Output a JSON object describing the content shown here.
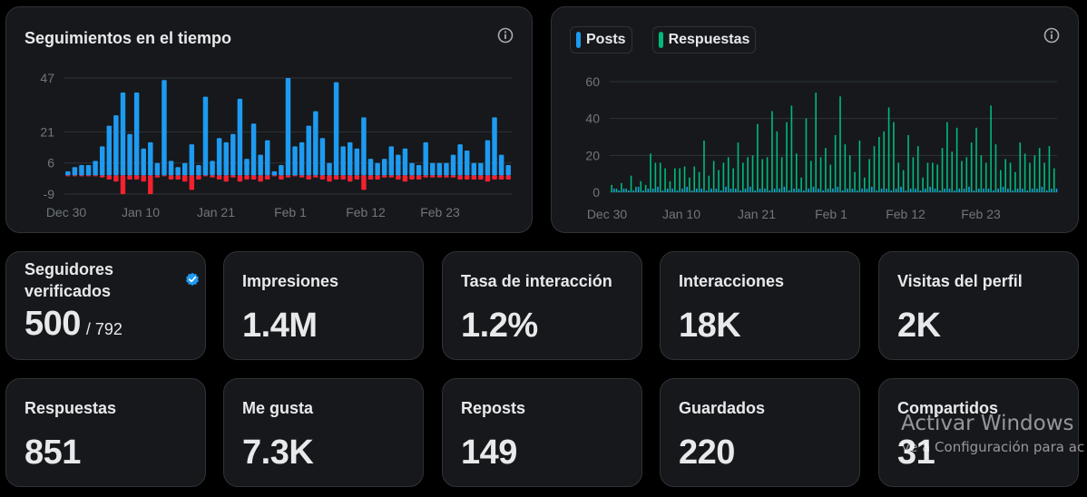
{
  "followers_chart": {
    "title": "Seguimientos en el tiempo",
    "chart_data": {
      "type": "bar",
      "title": "Seguimientos en el tiempo",
      "x_ticks": [
        "Dec 30",
        "Jan 10",
        "Jan 21",
        "Feb 1",
        "Feb 12",
        "Feb 23"
      ],
      "y_ticks": [
        47,
        21,
        6,
        -9
      ],
      "ylim": [
        -9,
        47
      ],
      "grid": true,
      "series": [
        {
          "values": [
            2,
            4,
            5,
            5,
            7,
            14,
            24,
            29,
            40,
            20,
            40,
            13,
            16,
            6,
            46,
            7,
            4,
            6,
            15,
            5,
            38,
            7,
            18,
            16,
            20,
            37,
            8,
            25,
            10,
            17,
            2,
            5,
            47,
            14,
            16,
            24,
            31,
            18,
            6,
            45,
            14,
            16,
            13,
            28,
            8,
            6,
            8,
            14,
            10,
            13,
            6,
            5,
            16,
            6,
            6,
            6,
            10,
            15,
            12,
            6,
            6,
            17,
            28,
            10,
            5
          ]
        },
        {
          "values": [
            0,
            0,
            0,
            0,
            0,
            -1,
            -2,
            -3,
            -9,
            -2,
            -2,
            -3,
            -9,
            -1,
            0,
            -2,
            -2,
            -3,
            -7,
            -2,
            0,
            -1,
            -2,
            -3,
            -1,
            -3,
            -2,
            -2,
            -3,
            -2,
            0,
            -2,
            -1,
            0,
            -1,
            -2,
            -1,
            -2,
            -3,
            -2,
            -2,
            -3,
            -2,
            -7,
            -2,
            -2,
            -1,
            -1,
            -2,
            -3,
            -2,
            -2,
            -1,
            -1,
            -1,
            -1,
            -1,
            -2,
            -2,
            -2,
            -2,
            -3,
            -2,
            -2,
            -2
          ]
        }
      ]
    }
  },
  "posts_chart": {
    "legend": [
      {
        "label": "Posts",
        "color": "#1d9bf0"
      },
      {
        "label": "Respuestas",
        "color": "#00ba7c"
      }
    ],
    "chart_data": {
      "type": "bar",
      "x_ticks": [
        "Dec 30",
        "Jan 10",
        "Jan 21",
        "Feb 1",
        "Feb 12",
        "Feb 23"
      ],
      "y_ticks": [
        60,
        40,
        20,
        0
      ],
      "ylim": [
        0,
        60
      ],
      "grid": true,
      "series": [
        {
          "name": "Posts",
          "color": "#1d9bf0",
          "values": [
            2,
            1,
            2,
            1,
            1,
            3,
            1,
            2,
            2,
            3,
            1,
            2,
            2,
            1,
            2,
            3,
            1,
            2,
            2,
            1,
            2,
            2,
            1,
            3,
            2,
            2,
            1,
            2,
            3,
            1,
            2,
            2,
            1,
            2,
            2,
            3,
            1,
            2,
            2,
            1,
            2,
            3,
            2,
            1,
            2,
            2,
            3,
            1,
            2,
            2,
            1,
            2,
            2,
            3,
            1,
            2,
            2,
            1,
            2,
            3,
            1,
            2,
            2,
            1,
            2,
            3,
            2,
            1,
            2,
            2,
            1,
            2,
            2,
            3,
            1,
            2,
            2,
            2,
            1,
            2,
            3,
            2,
            1,
            2,
            2,
            1,
            2,
            2,
            3,
            1,
            2,
            2
          ]
        },
        {
          "name": "Respuestas",
          "color": "#00ba7c",
          "values": [
            4,
            2,
            5,
            2,
            9,
            3,
            6,
            4,
            21,
            16,
            16,
            13,
            6,
            13,
            13,
            14,
            8,
            14,
            11,
            28,
            9,
            17,
            12,
            16,
            19,
            13,
            27,
            16,
            19,
            20,
            37,
            18,
            19,
            44,
            33,
            19,
            38,
            47,
            21,
            8,
            40,
            17,
            54,
            19,
            24,
            15,
            31,
            52,
            26,
            20,
            11,
            28,
            8,
            18,
            25,
            30,
            33,
            46,
            38,
            16,
            12,
            31,
            19,
            25,
            8,
            16,
            16,
            15,
            24,
            38,
            22,
            35,
            17,
            19,
            27,
            35,
            20,
            16,
            47,
            26,
            12,
            18,
            16,
            11,
            27,
            21,
            16,
            20,
            24,
            16,
            25,
            13
          ]
        }
      ]
    }
  },
  "stats": [
    {
      "label": "Seguidores verificados",
      "value": "500",
      "sub": "/ 792"
    },
    {
      "label": "Impresiones",
      "value": "1.4M"
    },
    {
      "label": "Tasa de interacción",
      "value": "1.2%"
    },
    {
      "label": "Interacciones",
      "value": "18K"
    },
    {
      "label": "Visitas del perfil",
      "value": "2K"
    },
    {
      "label": "Respuestas",
      "value": "851"
    },
    {
      "label": "Me gusta",
      "value": "7.3K"
    },
    {
      "label": "Reposts",
      "value": "149"
    },
    {
      "label": "Guardados",
      "value": "220"
    },
    {
      "label": "Compartidos",
      "value": "31"
    }
  ],
  "watermark": {
    "title": "Activar Windows",
    "subtitle": "Ve a Configuración para ac"
  },
  "colors": {
    "positive": "#1d9bf0",
    "negative": "#f4212e",
    "replies": "#00ba7c",
    "grid": "#2f3336",
    "tick": "#71767b"
  }
}
